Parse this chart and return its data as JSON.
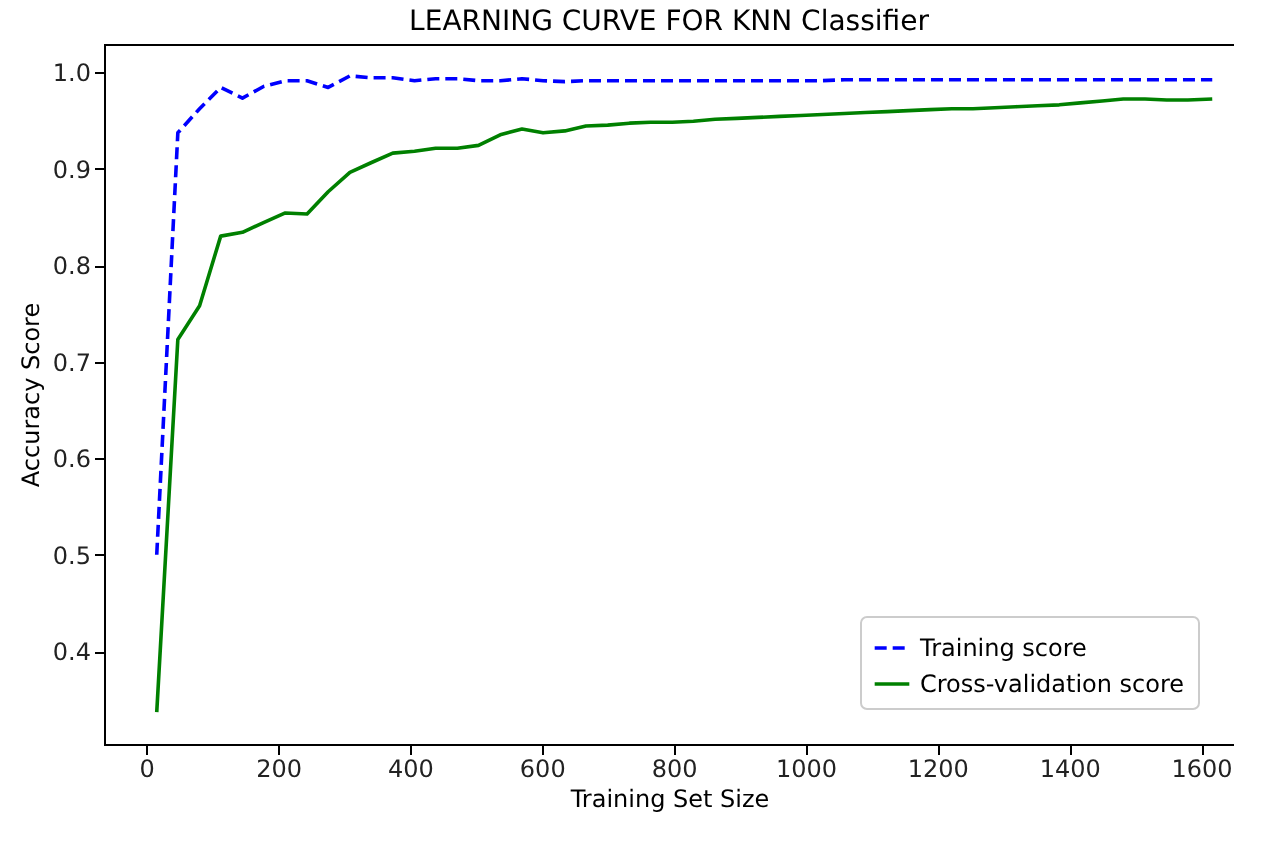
{
  "chart_data": {
    "type": "line",
    "title": "LEARNING CURVE FOR KNN Classifier",
    "xlabel": "Training Set Size",
    "ylabel": "Accuracy Score",
    "xlim": [
      -64,
      1650
    ],
    "ylim": [
      0.304,
      1.029
    ],
    "xticks": [
      0,
      200,
      400,
      600,
      800,
      1000,
      1200,
      1400,
      1600
    ],
    "yticks": [
      0.4,
      0.5,
      0.6,
      0.7,
      0.8,
      0.9,
      {
        "value": 1,
        "label": "1.0"
      }
    ],
    "x": [
      16,
      48,
      81,
      113,
      146,
      178,
      211,
      244,
      276,
      309,
      341,
      374,
      407,
      439,
      472,
      504,
      537,
      570,
      602,
      635,
      667,
      700,
      733,
      765,
      798,
      830,
      863,
      896,
      928,
      961,
      993,
      1026,
      1059,
      1091,
      1124,
      1156,
      1189,
      1222,
      1254,
      1287,
      1319,
      1352,
      1385,
      1417,
      1450,
      1482,
      1515,
      1548,
      1580,
      1617
    ],
    "series": [
      {
        "name": "Training score",
        "color": "#0000ff",
        "line_style": "dashed",
        "values": [
          0.5,
          0.937,
          0.962,
          0.984,
          0.973,
          0.985,
          0.991,
          0.991,
          0.984,
          0.996,
          0.994,
          0.994,
          0.991,
          0.993,
          0.993,
          0.991,
          0.991,
          0.993,
          0.991,
          0.99,
          0.991,
          0.991,
          0.991,
          0.991,
          0.991,
          0.991,
          0.991,
          0.991,
          0.991,
          0.991,
          0.991,
          0.991,
          0.992,
          0.992,
          0.992,
          0.992,
          0.992,
          0.992,
          0.992,
          0.992,
          0.992,
          0.992,
          0.992,
          0.992,
          0.992,
          0.992,
          0.992,
          0.992,
          0.992,
          0.992
        ]
      },
      {
        "name": "Cross-validation score",
        "color": "#008000",
        "line_style": "solid",
        "values": [
          0.337,
          0.723,
          0.758,
          0.83,
          0.834,
          0.844,
          0.854,
          0.853,
          0.876,
          0.896,
          0.906,
          0.916,
          0.918,
          0.921,
          0.921,
          0.924,
          0.935,
          0.941,
          0.937,
          0.939,
          0.944,
          0.945,
          0.947,
          0.948,
          0.948,
          0.949,
          0.951,
          0.952,
          0.953,
          0.954,
          0.955,
          0.956,
          0.957,
          0.958,
          0.959,
          0.96,
          0.961,
          0.962,
          0.962,
          0.963,
          0.964,
          0.965,
          0.966,
          0.968,
          0.97,
          0.972,
          0.972,
          0.971,
          0.971,
          0.972
        ]
      }
    ],
    "legend": "bottom right",
    "grid": false
  }
}
